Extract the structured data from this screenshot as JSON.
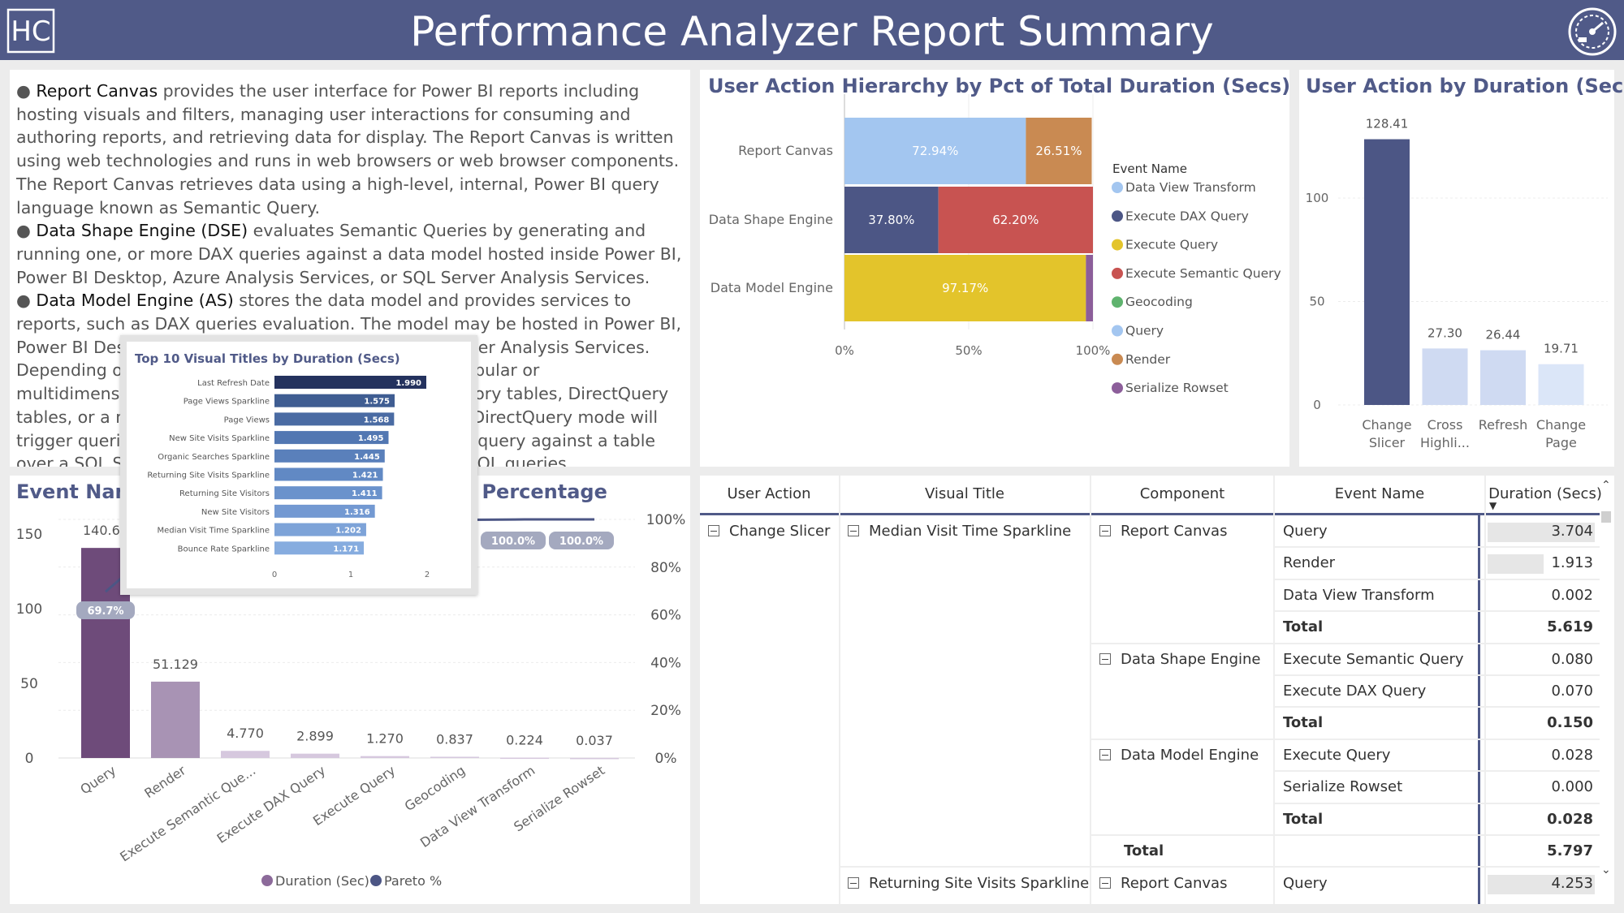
{
  "header": {
    "title": "Performance Analyzer Report Summary",
    "logo_text": "HC",
    "logo_icon": "hc-logo-icon",
    "gauge_icon": "speedometer-icon"
  },
  "description": {
    "paragraphs": [
      {
        "term": "Report Canvas",
        "text": " provides the user interface for Power BI reports including hosting visuals and filters, managing user interactions for consuming and authoring reports, and retrieving data for display.  The Report Canvas is written using web technologies and runs in web browsers or web browser components.  The Report Canvas retrieves data using a high-level, internal, Power BI query language known as Semantic Query."
      },
      {
        "term": "Data Shape Engine (DSE)",
        "text": " evaluates Semantic Queries by generating and running one, or more DAX queries against a data model hosted inside Power BI, Power BI Desktop, Azure Analysis Services, or SQL Server Analysis Services."
      },
      {
        "term": "Data Model Engine (AS)",
        "text": " stores the data model and provides services to reports, such as DAX queries evaluation.  The model may be hosted in Power BI, Power BI Desktop, Azure Analysis Services, or SQL Server Analysis Services.  Depending on the data model host, a model may be tabular or multidimensional. Tabular models may contain in-memory tables, DirectQuery tables, or a mix of both. DAX queries against tables in DirectQuery mode will trigger queries to the data source.  For example, a DAX query against a table over a SQL Server database will trigger one, or more, SQL queries."
      }
    ]
  },
  "hierarchy_chart": {
    "title": "User Action Hierarchy by Pct of Total Duration (Secs)",
    "legend_title": "Event Name",
    "legend": [
      {
        "name": "Data View Transform",
        "color": "#a3c6f0"
      },
      {
        "name": "Execute DAX Query",
        "color": "#4c5685"
      },
      {
        "name": "Execute Query",
        "color": "#e3c42b"
      },
      {
        "name": "Execute Semantic Query",
        "color": "#c85351"
      },
      {
        "name": "Geocoding",
        "color": "#5fb36e"
      },
      {
        "name": "Query",
        "color": "#a3c6f0"
      },
      {
        "name": "Render",
        "color": "#c98a52"
      },
      {
        "name": "Serialize Rowset",
        "color": "#8c5e9a"
      }
    ]
  },
  "duration_chart": {
    "title": "User Action by Duration (Sec)"
  },
  "pareto_chart": {
    "title": "Event Name by Duration (Sec) and Pareto Percentage",
    "legend": [
      {
        "name": "Duration (Sec)",
        "color": "#8c6a9a"
      },
      {
        "name": "Pareto %",
        "color": "#4c5685"
      }
    ],
    "pareto_badge": "69.7%",
    "pareto_badges_top": [
      "100.0%",
      "100.0%"
    ]
  },
  "popup": {
    "title": "Top 10 Visual Titles by Duration (Secs)"
  },
  "chart_data": [
    {
      "type": "bar",
      "orientation": "horizontal-stacked-100",
      "categories": [
        "Report Canvas",
        "Data Shape Engine",
        "Data Model Engine"
      ],
      "series": [
        {
          "name": "Data View Transform",
          "values": [
            0.06,
            0,
            0
          ],
          "labels": [
            "",
            "",
            ""
          ]
        },
        {
          "name": "Query",
          "values": [
            72.94,
            0,
            0
          ],
          "labels": [
            "72.94%",
            "",
            ""
          ]
        },
        {
          "name": "Render",
          "values": [
            26.51,
            0,
            0
          ],
          "labels": [
            "26.51%",
            "",
            ""
          ]
        },
        {
          "name": "Execute DAX Query",
          "values": [
            0,
            37.8,
            0
          ],
          "labels": [
            "",
            "37.80%",
            ""
          ]
        },
        {
          "name": "Execute Semantic Query",
          "values": [
            0,
            62.2,
            0
          ],
          "labels": [
            "",
            "62.20%",
            ""
          ]
        },
        {
          "name": "Execute Query",
          "values": [
            0,
            0,
            97.17
          ],
          "labels": [
            "",
            "",
            "97.17%"
          ]
        },
        {
          "name": "Serialize Rowset",
          "values": [
            0,
            0,
            2.83
          ],
          "labels": [
            "",
            "",
            ""
          ]
        }
      ],
      "xticks": [
        "0%",
        "50%",
        "100%"
      ],
      "xlim": [
        0,
        100
      ]
    },
    {
      "type": "bar",
      "categories": [
        "Change Slicer",
        "Cross Highli...",
        "Refresh",
        "Change Page"
      ],
      "values": [
        128.41,
        27.3,
        26.44,
        19.71
      ],
      "data_labels": [
        "128.41",
        "27.30",
        "26.44",
        "19.71"
      ],
      "yticks": [
        "0",
        "50",
        "100"
      ],
      "ylim": [
        0,
        140
      ]
    },
    {
      "type": "bar",
      "categories": [
        "Query",
        "Render",
        "Execute Semantic Que...",
        "Execute DAX Query",
        "Execute Query",
        "Geocoding",
        "Data View Transform",
        "Serialize Rowset"
      ],
      "series": [
        {
          "name": "Duration (Sec)",
          "values": [
            140.68,
            51.129,
            4.77,
            2.899,
            1.27,
            0.837,
            0.224,
            0.037
          ],
          "labels": [
            "140.68",
            "51.129",
            "4.770",
            "2.899",
            "1.270",
            "0.837",
            "0.224",
            "0.037"
          ]
        },
        {
          "name": "Pareto %",
          "values": [
            69.7,
            95.0,
            97.4,
            98.8,
            99.4,
            99.8,
            100.0,
            100.0
          ]
        }
      ],
      "yticks": [
        "0",
        "50",
        "100",
        "150"
      ],
      "y2ticks": [
        "0%",
        "20%",
        "40%",
        "60%",
        "80%",
        "100%"
      ],
      "ylim": [
        0,
        160
      ],
      "y2lim": [
        0,
        100
      ]
    },
    {
      "type": "bar",
      "orientation": "horizontal",
      "categories": [
        "Last Refresh Date",
        "Page Views Sparkline",
        "Page Views",
        "New Site Visits Sparkline",
        "Organic Searches Sparkline",
        "Returning Site Visits Sparkline",
        "Returning Site Visitors",
        "New Site Visitors",
        "Median Visit Time Sparkline",
        "Bounce Rate Sparkline"
      ],
      "values": [
        1.99,
        1.575,
        1.568,
        1.495,
        1.445,
        1.421,
        1.411,
        1.316,
        1.202,
        1.171
      ],
      "data_labels": [
        "1.990",
        "1.575",
        "1.568",
        "1.495",
        "1.445",
        "1.421",
        "1.411",
        "1.316",
        "1.202",
        "1.171"
      ],
      "xticks": [
        "0",
        "1",
        "2"
      ],
      "xlim": [
        0,
        2
      ]
    }
  ],
  "matrix": {
    "headers": [
      "User Action",
      "Visual Title",
      "Component",
      "Event Name",
      "Duration (Secs)"
    ],
    "sort_icon": "sort-descending-icon",
    "user_action": "Change Slicer",
    "visual_title": "Median Visit Time Sparkline",
    "groups": [
      {
        "component": "Report Canvas",
        "rows": [
          {
            "event": "Query",
            "value": "3.704",
            "bar": 1.0
          },
          {
            "event": "Render",
            "value": "1.913",
            "bar": 0.52
          },
          {
            "event": "Data View Transform",
            "value": "0.002",
            "bar": 0.0
          }
        ],
        "total_label": "Total",
        "total_value": "5.619"
      },
      {
        "component": "Data Shape Engine",
        "rows": [
          {
            "event": "Execute Semantic Query",
            "value": "0.080",
            "bar": 0.0
          },
          {
            "event": "Execute DAX Query",
            "value": "0.070",
            "bar": 0.0
          }
        ],
        "total_label": "Total",
        "total_value": "0.150"
      },
      {
        "component": "Data Model Engine",
        "rows": [
          {
            "event": "Execute Query",
            "value": "0.028",
            "bar": 0.0
          },
          {
            "event": "Serialize Rowset",
            "value": "0.000",
            "bar": 0.0
          }
        ],
        "total_label": "Total",
        "total_value": "0.028"
      }
    ],
    "visual_total_label": "Total",
    "visual_total_value": "5.797",
    "next_visual_title": "Returning Site Visits Sparkline",
    "next_component": "Report Canvas",
    "next_event": "Query",
    "next_value": "4.253",
    "next_bar": 1.0
  }
}
